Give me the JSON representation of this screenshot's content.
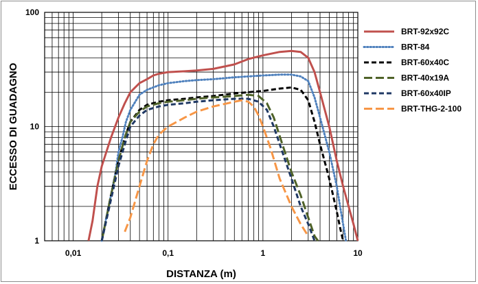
{
  "chart_data": {
    "type": "line",
    "title": "",
    "xlabel": "DISTANZA (m)",
    "ylabel": "ECCESSO DI GUADAGNO",
    "x_scale": "log",
    "y_scale": "log",
    "xlim": [
      0.005,
      10
    ],
    "ylim": [
      1,
      100
    ],
    "x_tick_labels": [
      "0,01",
      "0,1",
      "1",
      "10"
    ],
    "y_tick_labels": [
      "1",
      "10",
      "100"
    ],
    "grid": true,
    "legend_position": "right",
    "series": [
      {
        "name": "BRT-92x92C",
        "color": "#c0504d",
        "style": "solid",
        "points": [
          [
            0.0145,
            1
          ],
          [
            0.016,
            1.5
          ],
          [
            0.018,
            3
          ],
          [
            0.02,
            4.5
          ],
          [
            0.025,
            8
          ],
          [
            0.03,
            12
          ],
          [
            0.035,
            16
          ],
          [
            0.04,
            20
          ],
          [
            0.05,
            24
          ],
          [
            0.06,
            26
          ],
          [
            0.07,
            28
          ],
          [
            0.08,
            29
          ],
          [
            0.1,
            30
          ],
          [
            0.15,
            30.5
          ],
          [
            0.2,
            31
          ],
          [
            0.3,
            32
          ],
          [
            0.5,
            35
          ],
          [
            0.7,
            39
          ],
          [
            1,
            42
          ],
          [
            1.5,
            45
          ],
          [
            2,
            46
          ],
          [
            2.5,
            45
          ],
          [
            3,
            40
          ],
          [
            3.5,
            30
          ],
          [
            4,
            20
          ],
          [
            5,
            10
          ],
          [
            6,
            5
          ],
          [
            7,
            3
          ],
          [
            8,
            2
          ],
          [
            9,
            1.4
          ],
          [
            10,
            1
          ]
        ]
      },
      {
        "name": "BRT-84",
        "color": "#4f81bd",
        "style": "dotted",
        "points": [
          [
            0.02,
            1
          ],
          [
            0.022,
            1.5
          ],
          [
            0.025,
            2.5
          ],
          [
            0.028,
            4
          ],
          [
            0.03,
            6
          ],
          [
            0.033,
            8
          ],
          [
            0.036,
            11
          ],
          [
            0.04,
            14
          ],
          [
            0.05,
            19
          ],
          [
            0.06,
            21
          ],
          [
            0.08,
            23
          ],
          [
            0.1,
            24
          ],
          [
            0.15,
            25
          ],
          [
            0.2,
            25.5
          ],
          [
            0.3,
            26
          ],
          [
            0.5,
            27
          ],
          [
            0.7,
            27.5
          ],
          [
            1,
            28
          ],
          [
            1.5,
            28.5
          ],
          [
            2,
            28.5
          ],
          [
            2.5,
            27.5
          ],
          [
            3,
            25
          ],
          [
            3.5,
            18
          ],
          [
            4,
            12
          ],
          [
            5,
            6
          ],
          [
            6,
            3
          ],
          [
            6.5,
            2
          ],
          [
            7,
            1.4
          ],
          [
            7.5,
            1
          ]
        ]
      },
      {
        "name": "BRT-60x40C",
        "color": "#000000",
        "style": "dashed",
        "points": [
          [
            0.02,
            1
          ],
          [
            0.025,
            2.5
          ],
          [
            0.03,
            5
          ],
          [
            0.035,
            8
          ],
          [
            0.04,
            11
          ],
          [
            0.05,
            14
          ],
          [
            0.06,
            15.5
          ],
          [
            0.08,
            16.5
          ],
          [
            0.1,
            17
          ],
          [
            0.15,
            17.5
          ],
          [
            0.2,
            18
          ],
          [
            0.3,
            18.5
          ],
          [
            0.5,
            19.5
          ],
          [
            0.7,
            20
          ],
          [
            1,
            20.5
          ],
          [
            1.5,
            21.5
          ],
          [
            2,
            22
          ],
          [
            2.5,
            21
          ],
          [
            3,
            17
          ],
          [
            3.5,
            11
          ],
          [
            4,
            7
          ],
          [
            5,
            3.5
          ],
          [
            6,
            1.8
          ],
          [
            6.5,
            1.3
          ],
          [
            7,
            1
          ]
        ]
      },
      {
        "name": "BRT-40x19A",
        "color": "#4f6228",
        "style": "longdash",
        "points": [
          [
            0.02,
            1
          ],
          [
            0.025,
            2.5
          ],
          [
            0.03,
            5
          ],
          [
            0.035,
            8
          ],
          [
            0.04,
            11
          ],
          [
            0.05,
            13.5
          ],
          [
            0.06,
            15
          ],
          [
            0.08,
            16
          ],
          [
            0.1,
            16.5
          ],
          [
            0.15,
            17
          ],
          [
            0.2,
            17.5
          ],
          [
            0.3,
            18
          ],
          [
            0.5,
            18.5
          ],
          [
            0.7,
            19
          ],
          [
            0.9,
            18.5
          ],
          [
            1.1,
            16
          ],
          [
            1.3,
            12
          ],
          [
            1.6,
            7
          ],
          [
            2,
            4
          ],
          [
            2.5,
            2.5
          ],
          [
            3,
            1.6
          ],
          [
            3.5,
            1.1
          ],
          [
            3.8,
            1
          ]
        ]
      },
      {
        "name": "BRT-60x40IP",
        "color": "#1f3864",
        "style": "dashed",
        "points": [
          [
            0.02,
            1
          ],
          [
            0.025,
            2.3
          ],
          [
            0.03,
            4.5
          ],
          [
            0.035,
            7
          ],
          [
            0.04,
            10
          ],
          [
            0.05,
            12.5
          ],
          [
            0.06,
            14
          ],
          [
            0.08,
            15
          ],
          [
            0.1,
            15.5
          ],
          [
            0.15,
            16
          ],
          [
            0.2,
            16.5
          ],
          [
            0.3,
            17
          ],
          [
            0.5,
            17.5
          ],
          [
            0.7,
            17.5
          ],
          [
            0.9,
            16.5
          ],
          [
            1.1,
            14
          ],
          [
            1.3,
            10
          ],
          [
            1.6,
            6
          ],
          [
            2,
            3.5
          ],
          [
            2.5,
            2
          ],
          [
            3,
            1.4
          ],
          [
            3.5,
            1
          ]
        ]
      },
      {
        "name": "BRT-THG-2-100",
        "color": "#f79646",
        "style": "longdash",
        "points": [
          [
            0.035,
            1.2
          ],
          [
            0.04,
            1.6
          ],
          [
            0.05,
            3
          ],
          [
            0.06,
            5
          ],
          [
            0.07,
            7
          ],
          [
            0.08,
            8.5
          ],
          [
            0.1,
            10
          ],
          [
            0.15,
            12
          ],
          [
            0.2,
            13.5
          ],
          [
            0.3,
            15
          ],
          [
            0.5,
            16.5
          ],
          [
            0.6,
            17
          ],
          [
            0.7,
            16.5
          ],
          [
            0.8,
            15
          ],
          [
            0.9,
            12.5
          ],
          [
            1,
            10
          ],
          [
            1.2,
            6.5
          ],
          [
            1.5,
            3.5
          ],
          [
            2,
            2
          ],
          [
            2.5,
            1.4
          ],
          [
            3,
            1.1
          ]
        ]
      }
    ]
  }
}
